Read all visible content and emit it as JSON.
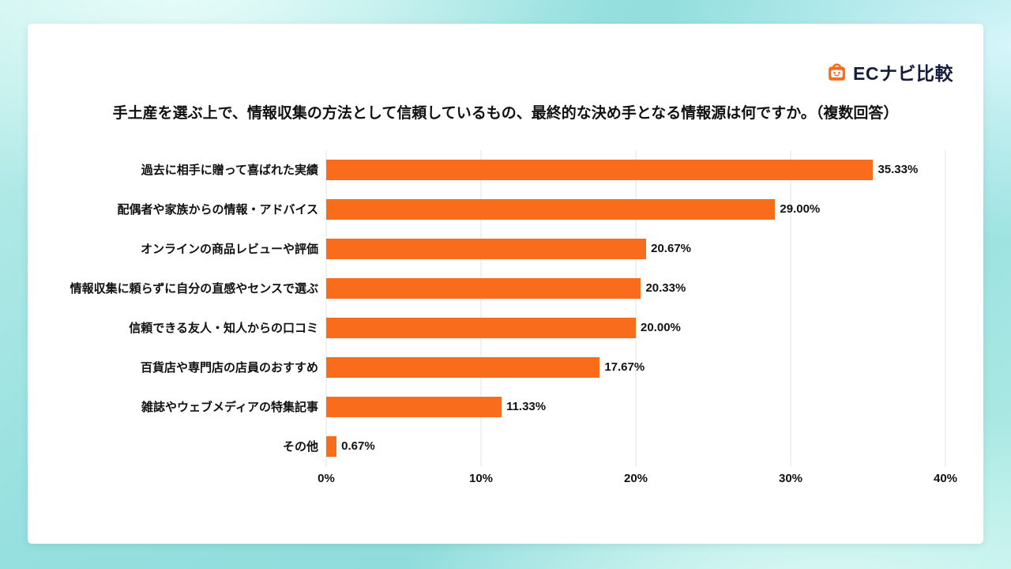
{
  "logo": {
    "text": "ECナビ比較",
    "icon": "shopping-bag-smile-icon"
  },
  "title": "手土産を選ぶ上で、情報収集の方法として信頼しているもの、最終的な決め手となる情報源は何ですか。（複数回答）",
  "chart_data": {
    "type": "bar",
    "orientation": "horizontal",
    "title": "手土産を選ぶ上で、情報収集の方法として信頼しているもの、最終的な決め手となる情報源は何ですか。（複数回答）",
    "categories": [
      "過去に相手に贈って喜ばれた実績",
      "配偶者や家族からの情報・アドバイス",
      "オンラインの商品レビューや評価",
      "情報収集に頼らずに自分の直感やセンスで選ぶ",
      "信頼できる友人・知人からの口コミ",
      "百貨店や専門店の店員のおすすめ",
      "雑誌やウェブメディアの特集記事",
      "その他"
    ],
    "values": [
      35.33,
      29.0,
      20.67,
      20.33,
      20.0,
      17.67,
      11.33,
      0.67
    ],
    "value_labels": [
      "35.33%",
      "29.00%",
      "20.67%",
      "20.33%",
      "20.00%",
      "17.67%",
      "11.33%",
      "0.67%"
    ],
    "x_ticks": [
      "0%",
      "10%",
      "20%",
      "30%",
      "40%"
    ],
    "xlim": [
      0,
      40
    ],
    "grid": true,
    "legend": false,
    "bar_color": "#F96C1B"
  },
  "colors": {
    "accent": "#F96C1B",
    "text": "#111111",
    "logo_text": "#131c3a",
    "gridline": "#e3e3e3",
    "card_background": "#ffffff"
  }
}
